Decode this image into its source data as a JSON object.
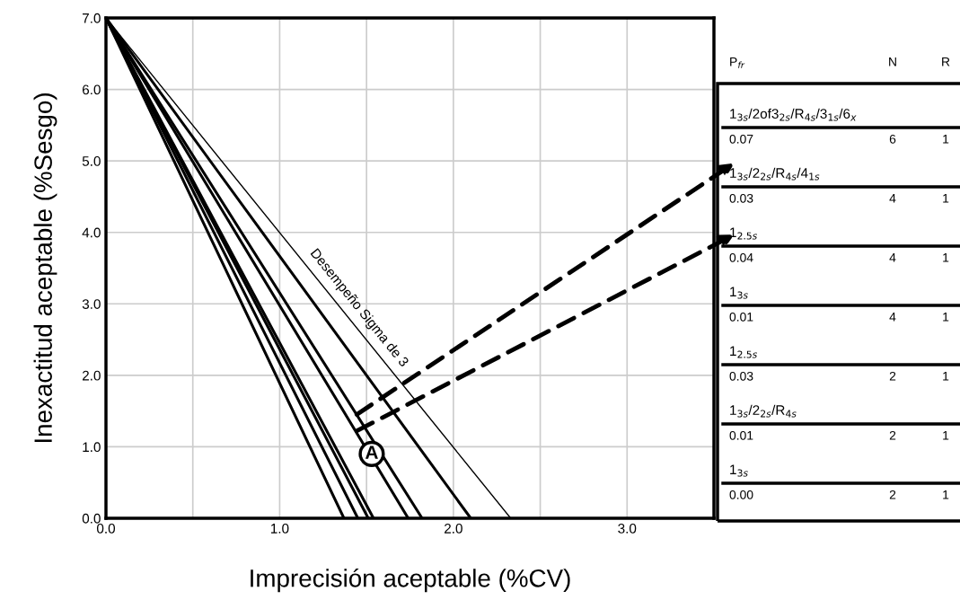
{
  "chart_data": {
    "type": "line",
    "xlabel": "Imprecisión aceptable (%CV)",
    "ylabel": "Inexactitud aceptable (%Sesgo)",
    "xlim": [
      0,
      3.5
    ],
    "ylim": [
      0,
      7
    ],
    "xticks": [
      {
        "value": 0,
        "label": "0.0"
      },
      {
        "value": 0.5,
        "label": null
      },
      {
        "value": 1,
        "label": "1.0"
      },
      {
        "value": 1.5,
        "label": null
      },
      {
        "value": 2,
        "label": "2.0"
      },
      {
        "value": 2.5,
        "label": null
      },
      {
        "value": 3,
        "label": "3.0"
      }
    ],
    "yticks": [
      {
        "value": 0,
        "label": "0.0"
      },
      {
        "value": 1,
        "label": "1.0"
      },
      {
        "value": 2,
        "label": "2.0"
      },
      {
        "value": 3,
        "label": "3.0"
      },
      {
        "value": 4,
        "label": "4.0"
      },
      {
        "value": 5,
        "label": "5.0"
      },
      {
        "value": 6,
        "label": "6.0"
      },
      {
        "value": 7,
        "label": "7.0"
      }
    ],
    "grid": true,
    "legend": false,
    "marker": "none",
    "line_style": "solid",
    "series": [
      {
        "name": "Desempeño Sigma de 3",
        "color": "#000000",
        "x": [
          0,
          2.33
        ],
        "values": [
          7,
          0
        ]
      },
      {
        "color": "#000000",
        "x": [
          0,
          2.1
        ],
        "values": [
          7,
          0
        ]
      },
      {
        "color": "#000000",
        "x": [
          0,
          1.82
        ],
        "values": [
          7,
          0
        ]
      },
      {
        "color": "#000000",
        "x": [
          0,
          1.74
        ],
        "values": [
          7,
          0
        ]
      },
      {
        "color": "#000000",
        "x": [
          0,
          1.54
        ],
        "values": [
          7,
          0
        ]
      },
      {
        "color": "#000000",
        "x": [
          0,
          1.51
        ],
        "values": [
          7,
          0
        ]
      },
      {
        "color": "#000000",
        "x": [
          0,
          1.45
        ],
        "values": [
          7,
          0
        ]
      },
      {
        "color": "#000000",
        "x": [
          0,
          1.37
        ],
        "values": [
          7,
          0
        ]
      }
    ],
    "annotations": [
      {
        "text": "A",
        "x": 1.53,
        "y": 0.9
      },
      "P$_{fr}$",
      "N",
      "R",
      "1$_{3s}$/2of3$_{2s}$/R$_{4s}$/3$_{1s}$/6$_{x}$",
      "0.07",
      "6",
      "1",
      "1$_{3s}$/2$_{2s}$/R$_{4s}$/4$_{1s}$",
      "0.03",
      "4",
      "1",
      "1$_{2.5s}$",
      "0.04",
      "4",
      "1",
      "1$_{3s}$",
      "0.01",
      "4",
      "1",
      "1$_{2.5s}$",
      "0.03",
      "2",
      "1",
      "1$_{3s}$/2$_{2s}$/R$_{4s}$",
      "0.01",
      "2",
      "1",
      "1$_{3s}$",
      "0.00",
      "2",
      "1"
    ]
  }
}
